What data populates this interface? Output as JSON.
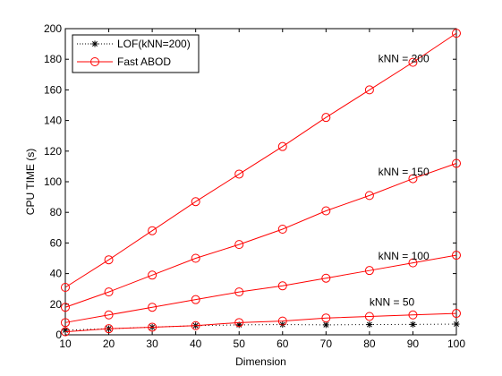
{
  "chart_data": {
    "type": "line",
    "xlabel": "Dimension",
    "ylabel": "CPU TIME (s)",
    "xlim": [
      10,
      100
    ],
    "ylim": [
      0,
      200
    ],
    "x_ticks": [
      10,
      20,
      30,
      40,
      50,
      60,
      70,
      80,
      90,
      100
    ],
    "y_ticks": [
      0,
      20,
      40,
      60,
      80,
      100,
      120,
      140,
      160,
      180,
      200
    ],
    "grid": false,
    "legend_position": "top-left",
    "x": [
      10,
      20,
      30,
      40,
      50,
      60,
      70,
      80,
      90,
      100
    ],
    "series": [
      {
        "name": "LOF(kNN=200)",
        "values": [
          3,
          4,
          5,
          6,
          6.5,
          6.7,
          6.5,
          6.7,
          6.8,
          7
        ],
        "color": "#000000",
        "line_style": "dotted",
        "marker": "asterisk"
      },
      {
        "name": "Fast ABOD",
        "group_label": "kNN = 200",
        "values": [
          31,
          49,
          68,
          87,
          105,
          123,
          142,
          160,
          178,
          197
        ],
        "color": "#ff0000",
        "line_style": "solid",
        "marker": "circle"
      },
      {
        "group_label": "kNN = 150",
        "values": [
          18,
          28,
          39,
          50,
          59,
          69,
          81,
          91,
          102,
          112
        ],
        "color": "#ff0000",
        "line_style": "solid",
        "marker": "circle"
      },
      {
        "group_label": "kNN = 100",
        "values": [
          8,
          13,
          18,
          23,
          28,
          32,
          37,
          42,
          47,
          52
        ],
        "color": "#ff0000",
        "line_style": "solid",
        "marker": "circle"
      },
      {
        "group_label": "kNN = 50",
        "values": [
          2,
          4,
          5,
          6,
          8,
          9,
          11,
          12,
          13,
          14
        ],
        "color": "#ff0000",
        "line_style": "solid",
        "marker": "circle"
      }
    ],
    "annotations": [
      {
        "text": "kNN = 200",
        "x": 82,
        "y": 178
      },
      {
        "text": "kNN = 150",
        "x": 82,
        "y": 104
      },
      {
        "text": "kNN = 100",
        "x": 82,
        "y": 49
      },
      {
        "text": "kNN = 50",
        "x": 80,
        "y": 19
      }
    ],
    "legend": [
      {
        "label": "LOF(kNN=200)",
        "color": "#000000",
        "line_style": "dotted",
        "marker": "asterisk"
      },
      {
        "label": "Fast ABOD",
        "color": "#ff0000",
        "line_style": "solid",
        "marker": "circle"
      }
    ]
  }
}
